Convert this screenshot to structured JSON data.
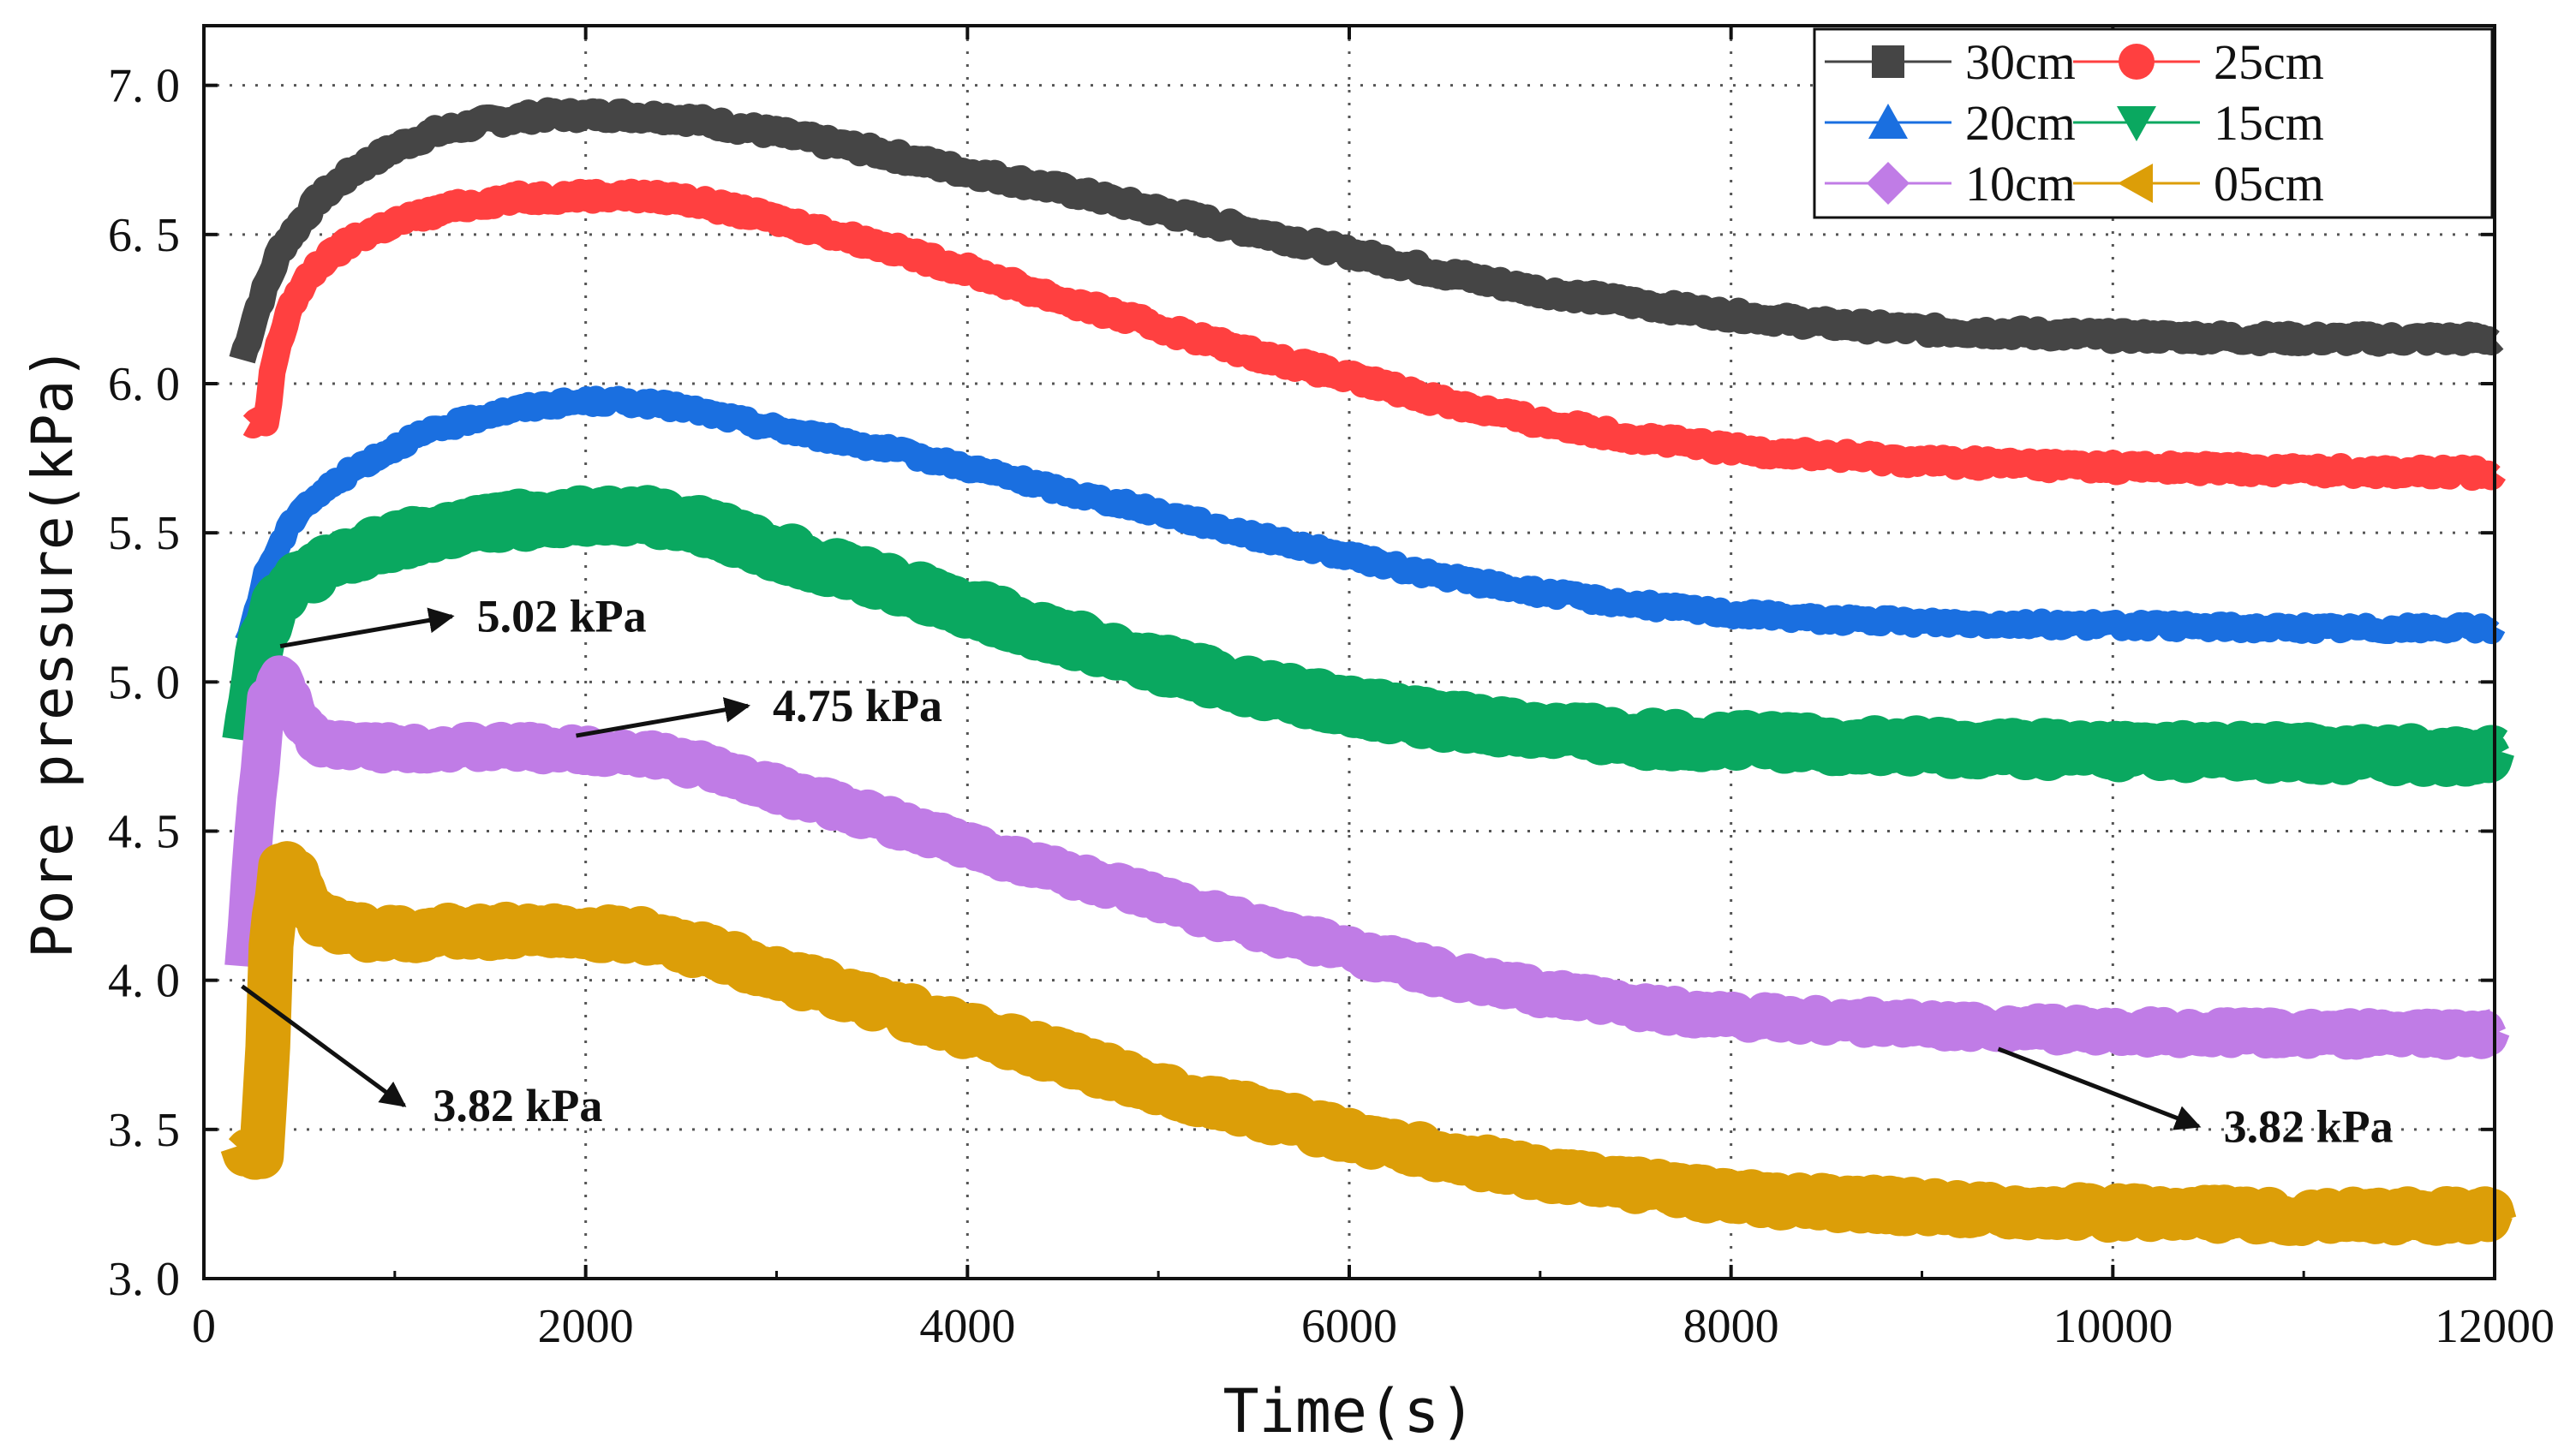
{
  "chart_data": {
    "type": "line",
    "title": "",
    "xlabel": "Time(s)",
    "ylabel": "Pore pressure(kPa)",
    "xlim": [
      0,
      12000
    ],
    "ylim": [
      3.0,
      7.2
    ],
    "xticks": [
      0,
      2000,
      4000,
      6000,
      8000,
      10000,
      12000
    ],
    "xtick_labels": [
      "0",
      "2000",
      "4000",
      "6000",
      "8000",
      "10000",
      "12000"
    ],
    "yticks": [
      3.0,
      3.5,
      4.0,
      4.5,
      5.0,
      5.5,
      6.0,
      6.5,
      7.0
    ],
    "ytick_labels": [
      "3. 0",
      "3. 5",
      "4. 0",
      "4. 5",
      "5. 0",
      "5. 5",
      "6. 0",
      "6. 5",
      "7. 0"
    ],
    "grid": true,
    "legend_position": "top-right",
    "series": [
      {
        "name": "30cm",
        "color": "#454545",
        "marker": "square",
        "band": 0.09,
        "points": [
          [
            200,
            6.08
          ],
          [
            280,
            6.25
          ],
          [
            400,
            6.45
          ],
          [
            600,
            6.62
          ],
          [
            800,
            6.72
          ],
          [
            1000,
            6.79
          ],
          [
            1200,
            6.84
          ],
          [
            1500,
            6.88
          ],
          [
            1800,
            6.9
          ],
          [
            2000,
            6.9
          ],
          [
            2200,
            6.9
          ],
          [
            2500,
            6.89
          ],
          [
            3000,
            6.84
          ],
          [
            3500,
            6.78
          ],
          [
            4000,
            6.71
          ],
          [
            4500,
            6.65
          ],
          [
            5000,
            6.58
          ],
          [
            5500,
            6.51
          ],
          [
            6000,
            6.44
          ],
          [
            6500,
            6.37
          ],
          [
            7000,
            6.31
          ],
          [
            7500,
            6.27
          ],
          [
            8000,
            6.23
          ],
          [
            8500,
            6.2
          ],
          [
            9000,
            6.18
          ],
          [
            9500,
            6.17
          ],
          [
            10000,
            6.16
          ],
          [
            11000,
            6.15
          ],
          [
            12000,
            6.15
          ]
        ]
      },
      {
        "name": "25cm",
        "color": "#ff4040",
        "marker": "circle",
        "band": 0.09,
        "points": [
          [
            240,
            5.86
          ],
          [
            330,
            5.87
          ],
          [
            360,
            6.05
          ],
          [
            450,
            6.26
          ],
          [
            600,
            6.4
          ],
          [
            800,
            6.49
          ],
          [
            1000,
            6.54
          ],
          [
            1300,
            6.59
          ],
          [
            1600,
            6.62
          ],
          [
            2000,
            6.63
          ],
          [
            2200,
            6.63
          ],
          [
            2500,
            6.62
          ],
          [
            3000,
            6.55
          ],
          [
            3500,
            6.47
          ],
          [
            4000,
            6.38
          ],
          [
            4500,
            6.28
          ],
          [
            5000,
            6.19
          ],
          [
            5500,
            6.1
          ],
          [
            6000,
            6.02
          ],
          [
            6500,
            5.94
          ],
          [
            7000,
            5.87
          ],
          [
            7500,
            5.82
          ],
          [
            8000,
            5.78
          ],
          [
            9000,
            5.74
          ],
          [
            10000,
            5.72
          ],
          [
            11000,
            5.71
          ],
          [
            12000,
            5.7
          ]
        ]
      },
      {
        "name": "20cm",
        "color": "#1a6fe0",
        "marker": "triangle-up",
        "band": 0.08,
        "points": [
          [
            220,
            5.12
          ],
          [
            330,
            5.38
          ],
          [
            500,
            5.58
          ],
          [
            800,
            5.72
          ],
          [
            1100,
            5.82
          ],
          [
            1500,
            5.9
          ],
          [
            1800,
            5.93
          ],
          [
            2000,
            5.94
          ],
          [
            2200,
            5.94
          ],
          [
            2500,
            5.92
          ],
          [
            3000,
            5.85
          ],
          [
            3500,
            5.79
          ],
          [
            4000,
            5.72
          ],
          [
            4500,
            5.64
          ],
          [
            5000,
            5.57
          ],
          [
            5500,
            5.49
          ],
          [
            6000,
            5.42
          ],
          [
            6500,
            5.35
          ],
          [
            7000,
            5.3
          ],
          [
            7500,
            5.26
          ],
          [
            8000,
            5.23
          ],
          [
            8500,
            5.21
          ],
          [
            9000,
            5.2
          ],
          [
            10000,
            5.19
          ],
          [
            11000,
            5.18
          ],
          [
            12000,
            5.18
          ]
        ]
      },
      {
        "name": "15cm",
        "color": "#0aa860",
        "marker": "triangle-down",
        "band": 0.16,
        "points": [
          [
            220,
            4.82
          ],
          [
            300,
            5.15
          ],
          [
            400,
            5.3
          ],
          [
            600,
            5.38
          ],
          [
            900,
            5.45
          ],
          [
            1200,
            5.5
          ],
          [
            1600,
            5.54
          ],
          [
            2000,
            5.56
          ],
          [
            2300,
            5.56
          ],
          [
            2600,
            5.52
          ],
          [
            3000,
            5.44
          ],
          [
            3500,
            5.35
          ],
          [
            4000,
            5.25
          ],
          [
            4500,
            5.15
          ],
          [
            5000,
            5.06
          ],
          [
            5500,
            4.98
          ],
          [
            6000,
            4.92
          ],
          [
            6500,
            4.87
          ],
          [
            7000,
            4.84
          ],
          [
            7500,
            4.81
          ],
          [
            8000,
            4.8
          ],
          [
            9000,
            4.78
          ],
          [
            10000,
            4.77
          ],
          [
            11000,
            4.76
          ],
          [
            12000,
            4.75
          ]
        ]
      },
      {
        "name": "10cm",
        "color": "#c07ce6",
        "marker": "diamond",
        "band": 0.13,
        "points": [
          [
            210,
            4.05
          ],
          [
            270,
            4.55
          ],
          [
            330,
            4.95
          ],
          [
            400,
            5.02
          ],
          [
            480,
            4.9
          ],
          [
            600,
            4.8
          ],
          [
            900,
            4.78
          ],
          [
            1300,
            4.78
          ],
          [
            1700,
            4.78
          ],
          [
            2000,
            4.77
          ],
          [
            2300,
            4.76
          ],
          [
            2600,
            4.72
          ],
          [
            3000,
            4.64
          ],
          [
            3500,
            4.55
          ],
          [
            4000,
            4.45
          ],
          [
            4500,
            4.36
          ],
          [
            5000,
            4.27
          ],
          [
            5500,
            4.18
          ],
          [
            6000,
            4.1
          ],
          [
            6500,
            4.02
          ],
          [
            7000,
            3.96
          ],
          [
            7500,
            3.91
          ],
          [
            8000,
            3.88
          ],
          [
            9000,
            3.85
          ],
          [
            10000,
            3.83
          ],
          [
            11000,
            3.82
          ],
          [
            12000,
            3.82
          ]
        ]
      },
      {
        "name": "05cm",
        "color": "#dc9e08",
        "marker": "triangle-left",
        "band": 0.15,
        "points": [
          [
            200,
            3.44
          ],
          [
            300,
            3.42
          ],
          [
            330,
            3.7
          ],
          [
            350,
            4.1
          ],
          [
            400,
            4.38
          ],
          [
            480,
            4.35
          ],
          [
            600,
            4.2
          ],
          [
            900,
            4.15
          ],
          [
            1300,
            4.16
          ],
          [
            1700,
            4.17
          ],
          [
            2000,
            4.16
          ],
          [
            2300,
            4.15
          ],
          [
            2600,
            4.1
          ],
          [
            3000,
            4.02
          ],
          [
            3500,
            3.93
          ],
          [
            4000,
            3.83
          ],
          [
            4500,
            3.74
          ],
          [
            5000,
            3.64
          ],
          [
            5500,
            3.56
          ],
          [
            6000,
            3.48
          ],
          [
            6500,
            3.41
          ],
          [
            7000,
            3.35
          ],
          [
            7500,
            3.31
          ],
          [
            8000,
            3.27
          ],
          [
            9000,
            3.24
          ],
          [
            10000,
            3.22
          ],
          [
            11000,
            3.21
          ],
          [
            12000,
            3.21
          ]
        ]
      }
    ],
    "annotations": [
      {
        "text": "5.02 kPa",
        "from": [
          400,
          5.12
        ],
        "to": [
          1300,
          5.22
        ],
        "text_at": [
          1430,
          5.22
        ]
      },
      {
        "text": "4.75 kPa",
        "from": [
          1950,
          4.82
        ],
        "to": [
          2850,
          4.92
        ],
        "text_at": [
          2980,
          4.92
        ]
      },
      {
        "text": "3.82 kPa",
        "from": [
          200,
          3.98
        ],
        "to": [
          1050,
          3.58
        ],
        "text_at": [
          1200,
          3.58
        ]
      },
      {
        "text": "3.82 kPa",
        "from": [
          9400,
          3.77
        ],
        "to": [
          10450,
          3.51
        ],
        "text_at": [
          10580,
          3.51
        ]
      }
    ]
  }
}
